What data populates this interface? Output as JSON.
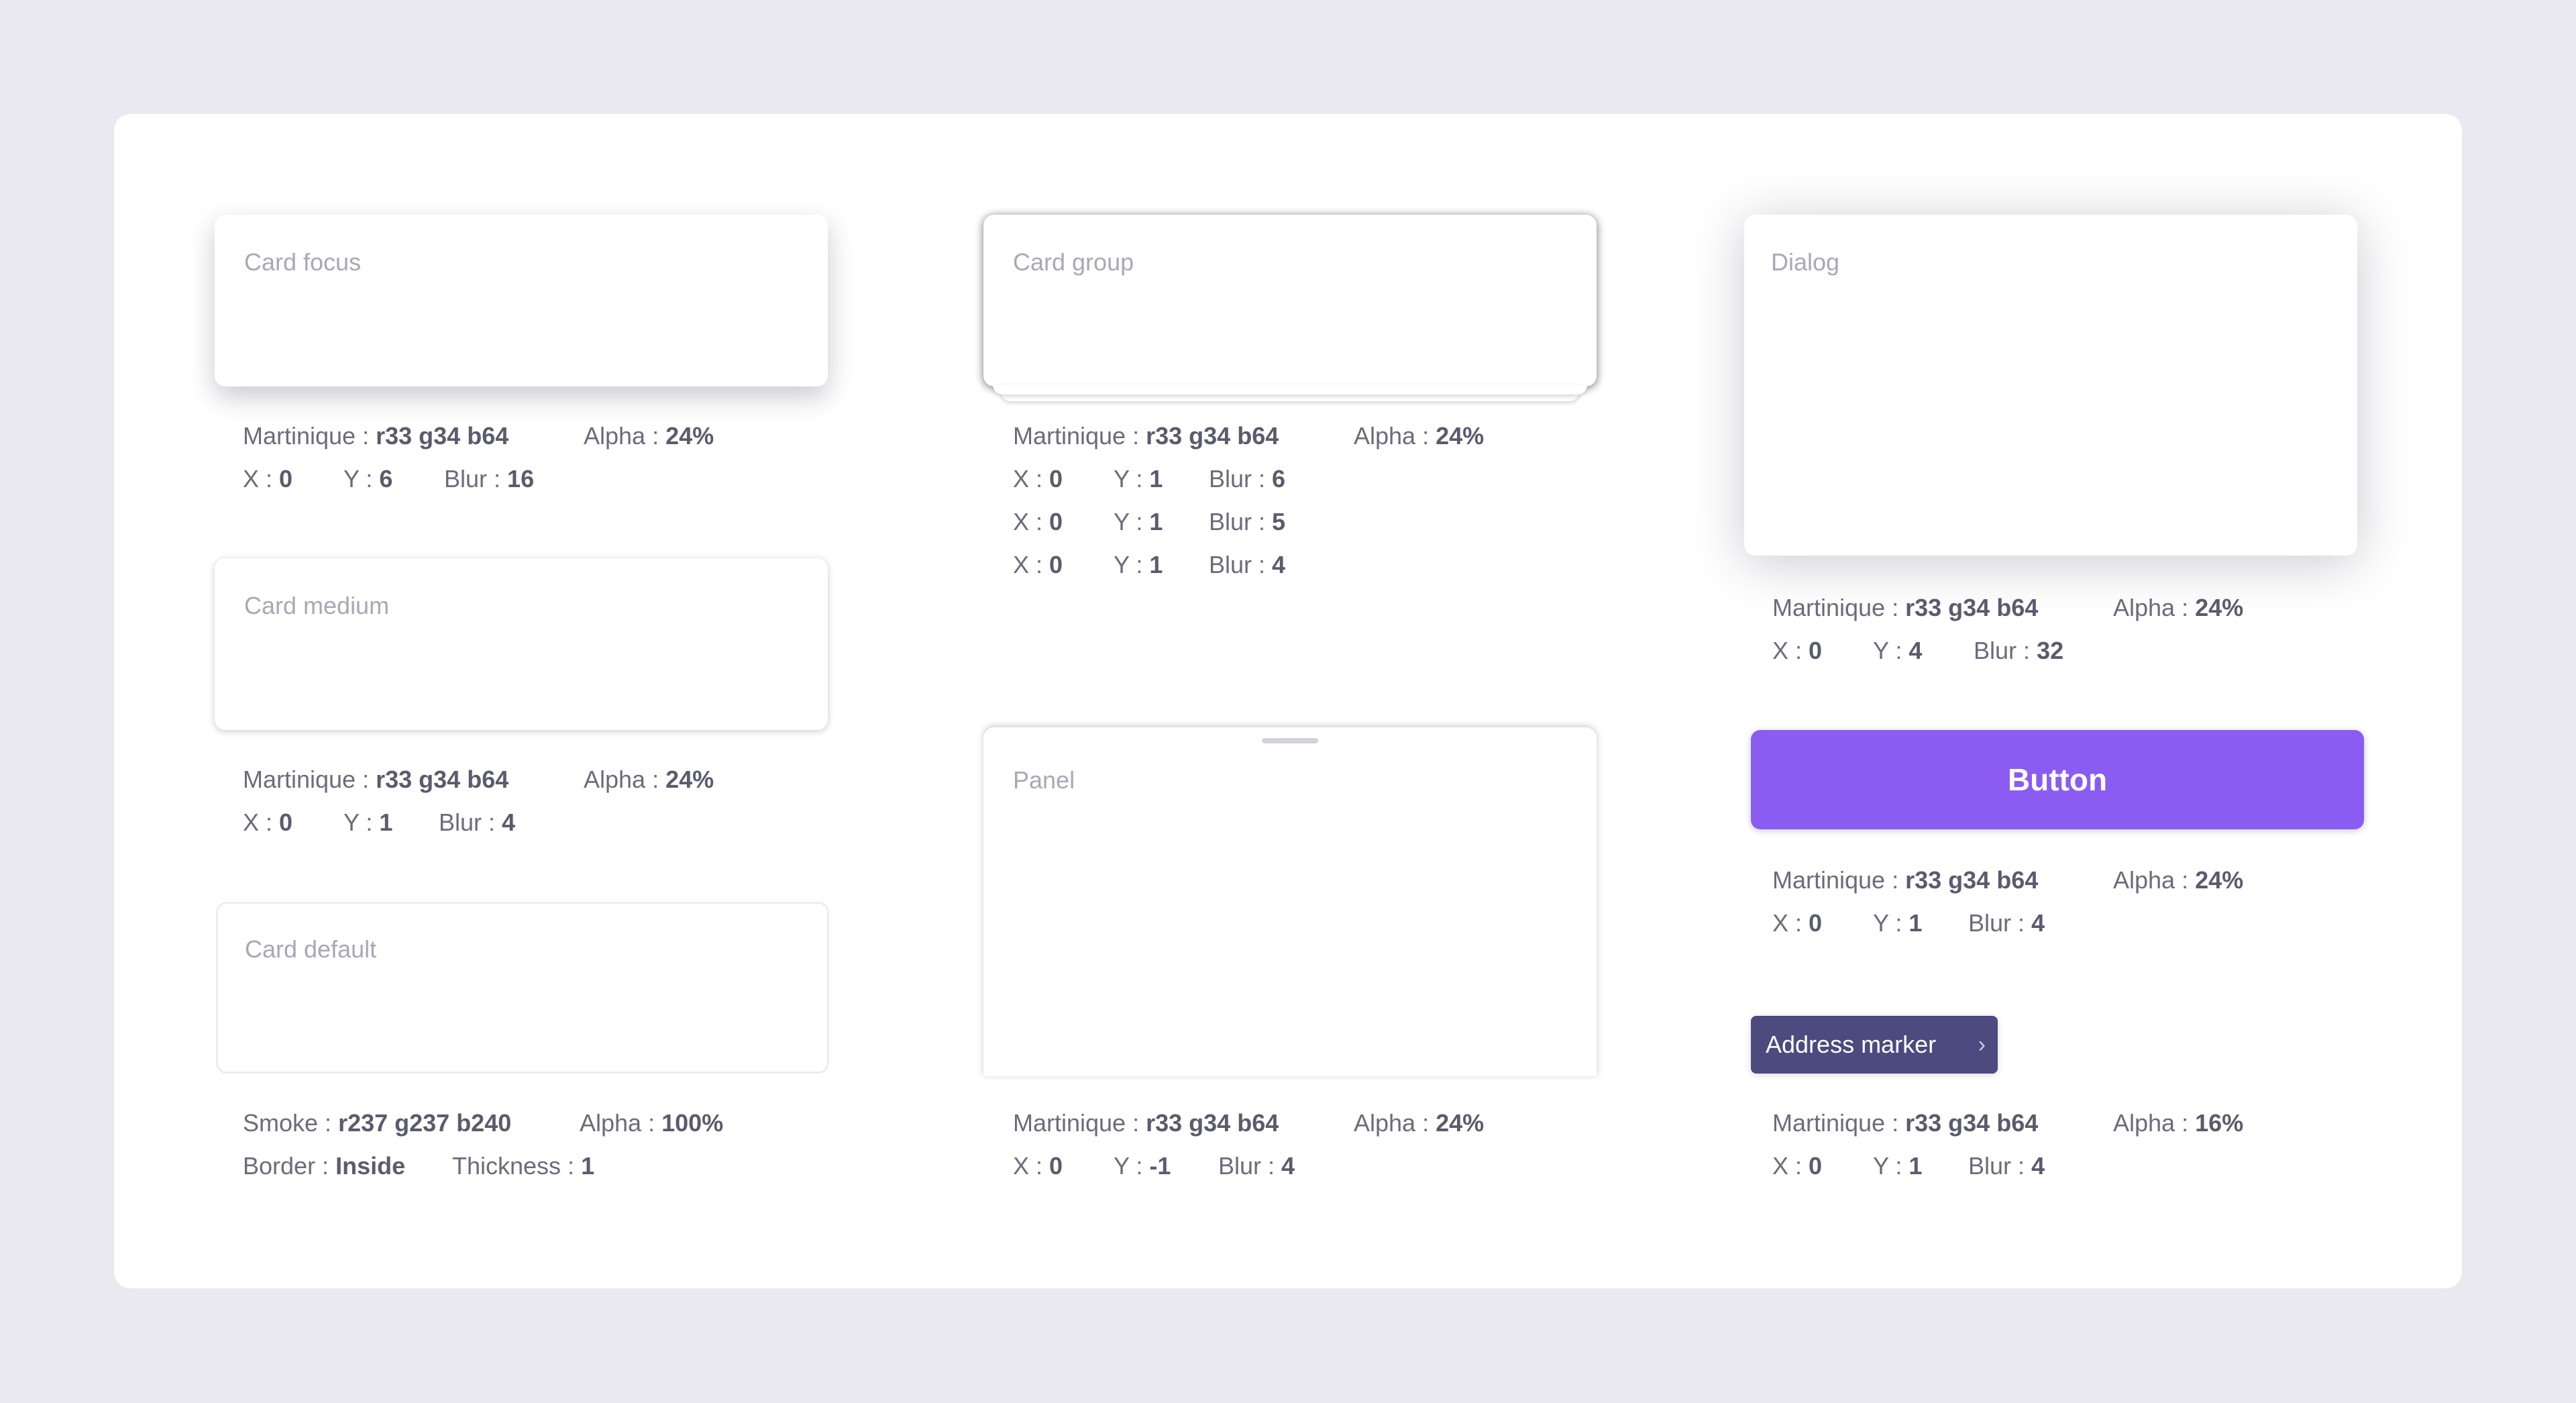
{
  "cards": {
    "focus": "Card focus",
    "medium": "Card medium",
    "default": "Card default",
    "group": "Card group",
    "panel": "Panel",
    "dialog": "Dialog"
  },
  "button_label": "Button",
  "marker": {
    "label": "Address marker",
    "chevron": "›"
  },
  "specs": {
    "focus": {
      "color_label": "Martinique :",
      "color_value": "r33 g34 b64",
      "alpha_label": "Alpha :",
      "alpha_value": "24%",
      "x_label": "X :",
      "x": "0",
      "y_label": "Y :",
      "y": "6",
      "blur_label": "Blur :",
      "blur": "16"
    },
    "medium": {
      "color_label": "Martinique :",
      "color_value": "r33 g34 b64",
      "alpha_label": "Alpha :",
      "alpha_value": "24%",
      "x_label": "X :",
      "x": "0",
      "y_label": "Y :",
      "y": "1",
      "blur_label": "Blur :",
      "blur": "4"
    },
    "default": {
      "color_label": "Smoke :",
      "color_value": "r237 g237 b240",
      "alpha_label": "Alpha :",
      "alpha_value": "100%",
      "border_label": "Border :",
      "border_value": "Inside",
      "thickness_label": "Thickness :",
      "thickness_value": "1"
    },
    "group": {
      "color_label": "Martinique :",
      "color_value": "r33 g34 b64",
      "alpha_label": "Alpha :",
      "alpha_value": "24%",
      "rows": [
        {
          "x_label": "X :",
          "x": "0",
          "y_label": "Y :",
          "y": "1",
          "blur_label": "Blur :",
          "blur": "6"
        },
        {
          "x_label": "X :",
          "x": "0",
          "y_label": "Y :",
          "y": "1",
          "blur_label": "Blur :",
          "blur": "5"
        },
        {
          "x_label": "X :",
          "x": "0",
          "y_label": "Y :",
          "y": "1",
          "blur_label": "Blur :",
          "blur": "4"
        }
      ]
    },
    "panel": {
      "color_label": "Martinique :",
      "color_value": "r33 g34 b64",
      "alpha_label": "Alpha :",
      "alpha_value": "24%",
      "x_label": "X :",
      "x": "0",
      "y_label": "Y :",
      "y": "-1",
      "blur_label": "Blur :",
      "blur": "4"
    },
    "dialog": {
      "color_label": "Martinique :",
      "color_value": "r33 g34 b64",
      "alpha_label": "Alpha :",
      "alpha_value": "24%",
      "x_label": "X :",
      "x": "0",
      "y_label": "Y :",
      "y": "4",
      "blur_label": "Blur :",
      "blur": "32"
    },
    "button": {
      "color_label": "Martinique :",
      "color_value": "r33 g34 b64",
      "alpha_label": "Alpha :",
      "alpha_value": "24%",
      "x_label": "X :",
      "x": "0",
      "y_label": "Y :",
      "y": "1",
      "blur_label": "Blur :",
      "blur": "4"
    },
    "marker": {
      "color_label": "Martinique :",
      "color_value": "r33 g34 b64",
      "alpha_label": "Alpha :",
      "alpha_value": "16%",
      "x_label": "X :",
      "x": "0",
      "y_label": "Y :",
      "y": "1",
      "blur_label": "Blur :",
      "blur": "4"
    }
  },
  "colors": {
    "background": "#e9e9ef",
    "surface": "#ffffff",
    "accent": "#8a5cf2",
    "marker": "#4c4a7e",
    "text": "#6b6b7c"
  }
}
